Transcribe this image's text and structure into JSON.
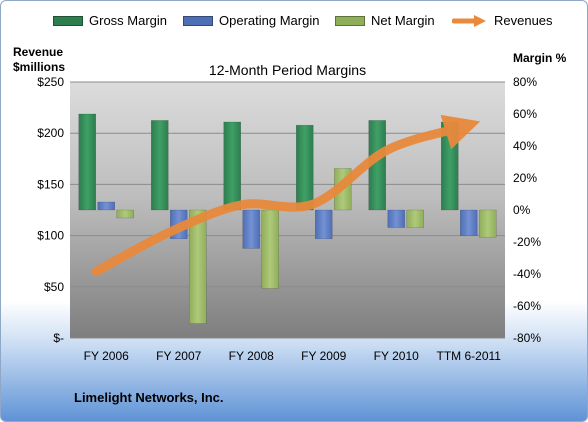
{
  "legend": {
    "items": [
      {
        "label": "Gross Margin",
        "color": "#2e7d4f",
        "shape": "bar"
      },
      {
        "label": "Operating Margin",
        "color": "#4f6fb5",
        "shape": "bar"
      },
      {
        "label": "Net Margin",
        "color": "#8fae5a",
        "shape": "bar"
      },
      {
        "label": "Revenues",
        "color": "#e8893c",
        "shape": "arrow"
      }
    ]
  },
  "left_axis_title": [
    "Revenue",
    "$millions"
  ],
  "right_axis_title": "Margin %",
  "footer": {
    "company": "Limelight Networks, Inc."
  },
  "chart_data": {
    "type": "bar",
    "title": "12-Month Period Margins",
    "categories": [
      "FY 2006",
      "FY 2007",
      "FY 2008",
      "FY 2009",
      "FY 2010",
      "TTM 6-2011"
    ],
    "y_left": {
      "label": "Revenue $millions",
      "range": [
        0,
        250
      ],
      "ticks": [
        "$-",
        "$50",
        "$100",
        "$150",
        "$200",
        "$250"
      ]
    },
    "y_right": {
      "label": "Margin %",
      "range": [
        -80,
        80
      ],
      "ticks": [
        "-80%",
        "-60%",
        "-40%",
        "-20%",
        "0%",
        "20%",
        "40%",
        "60%",
        "80%"
      ]
    },
    "series": [
      {
        "name": "Gross Margin",
        "axis": "right",
        "unit": "%",
        "values": [
          60,
          56,
          55,
          53,
          56,
          55
        ]
      },
      {
        "name": "Operating Margin",
        "axis": "right",
        "unit": "%",
        "values": [
          5,
          -18,
          -24,
          -18,
          -11,
          -16
        ]
      },
      {
        "name": "Net Margin",
        "axis": "right",
        "unit": "%",
        "values": [
          -5,
          -71,
          -49,
          26,
          -11,
          -17
        ]
      },
      {
        "name": "Revenues",
        "axis": "left",
        "type": "line",
        "unit": "$millions",
        "values": [
          65,
          103,
          130,
          131,
          183,
          205
        ]
      }
    ],
    "colors": {
      "gross": "#2e7d4f",
      "operating": "#4f6fb5",
      "net": "#8fae5a",
      "revenues": "#e8893c"
    },
    "plot_background": "gradient gray"
  }
}
